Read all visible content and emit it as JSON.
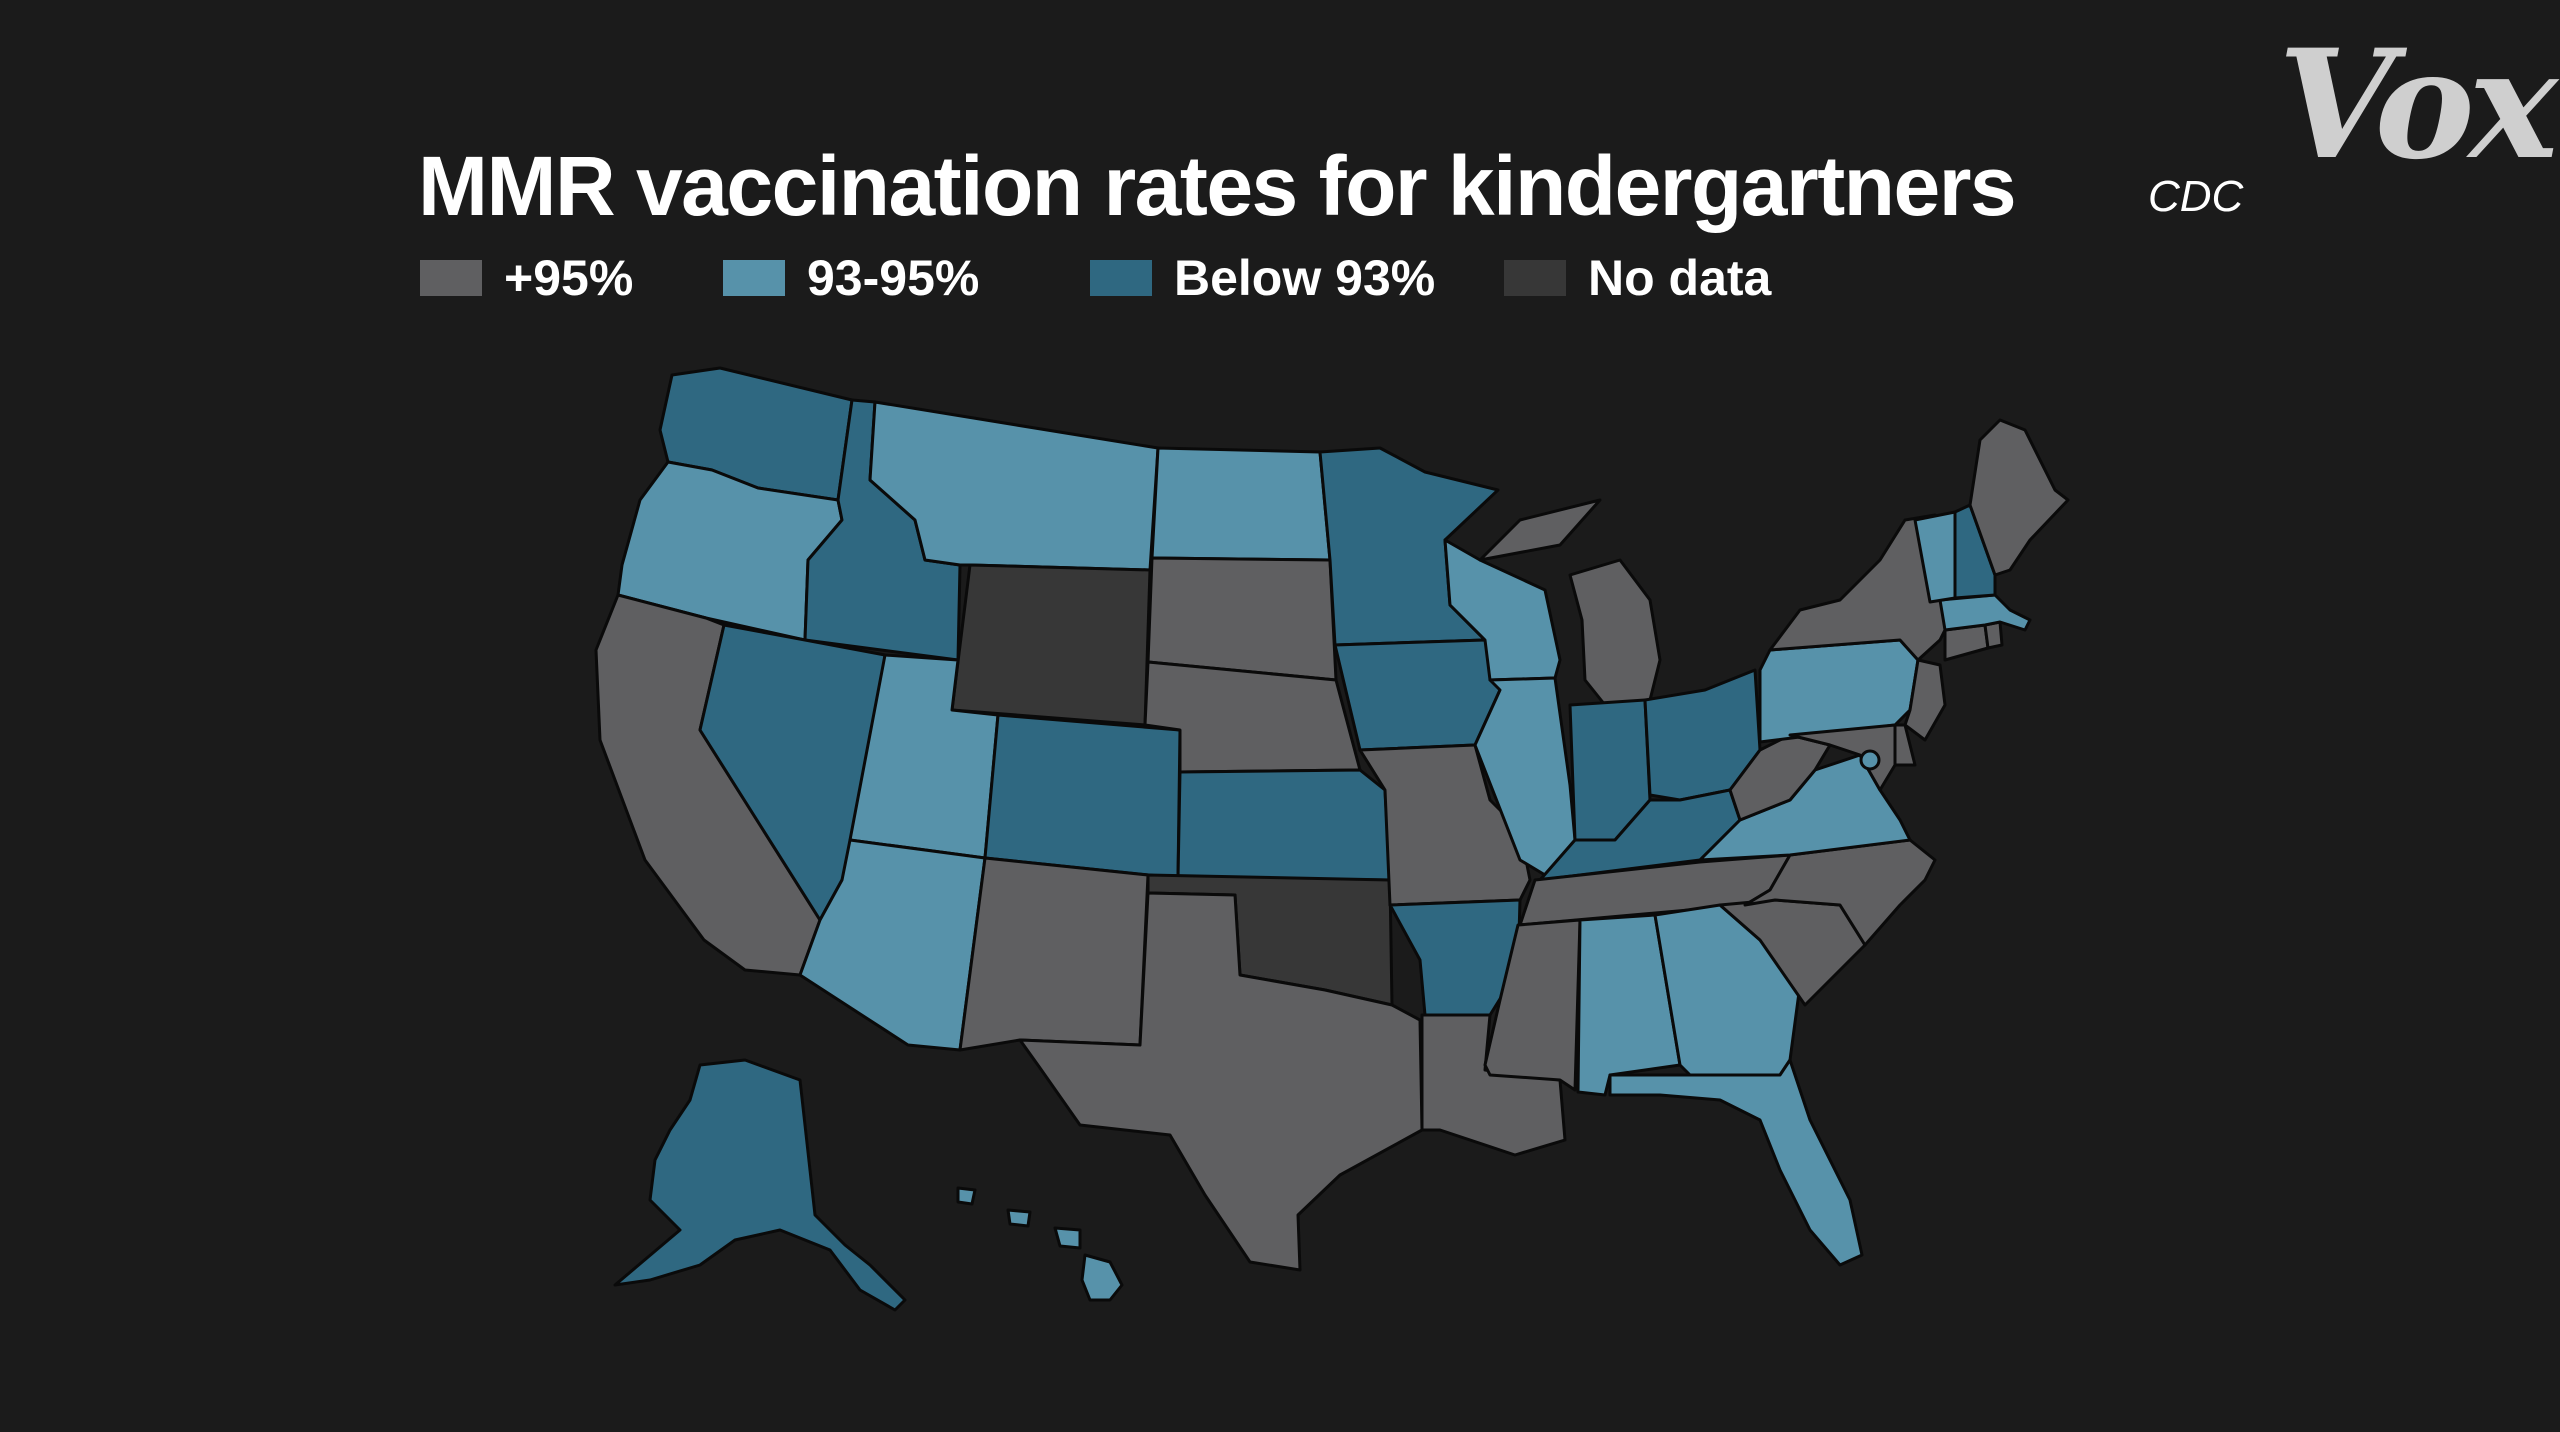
{
  "title": "MMR vaccination rates for kindergartners",
  "source": "CDC",
  "logo": "Vox",
  "legend": [
    {
      "label": "+95%",
      "category": "high",
      "color": "#5f5f61"
    },
    {
      "label": "93-95%",
      "category": "mid",
      "color": "#5792aa"
    },
    {
      "label": "Below 93%",
      "category": "low",
      "color": "#2f6881"
    },
    {
      "label": "No data",
      "category": "nodata",
      "color": "#373737"
    }
  ],
  "states": {
    "WA": "low",
    "OR": "mid",
    "CA": "high",
    "ID": "low",
    "NV": "low",
    "MT": "mid",
    "WY": "nodata",
    "UT": "mid",
    "AZ": "mid",
    "CO": "low",
    "NM": "high",
    "ND": "mid",
    "SD": "high",
    "NE": "high",
    "KS": "low",
    "OK": "nodata",
    "TX": "high",
    "MN": "low",
    "IA": "low",
    "MO": "high",
    "AR": "low",
    "LA": "high",
    "WI": "mid",
    "IL": "mid",
    "MI": "high",
    "IN": "low",
    "OH": "low",
    "KY": "low",
    "TN": "high",
    "MS": "high",
    "AL": "mid",
    "GA": "mid",
    "FL": "mid",
    "SC": "high",
    "NC": "high",
    "VA": "mid",
    "WV": "high",
    "PA": "mid",
    "NY": "high",
    "VT": "mid",
    "NH": "low",
    "ME": "high",
    "MA": "mid",
    "CT": "high",
    "RI": "high",
    "NJ": "high",
    "DE": "high",
    "MD": "high",
    "DC": "mid",
    "AK": "low",
    "HI": "mid"
  }
}
